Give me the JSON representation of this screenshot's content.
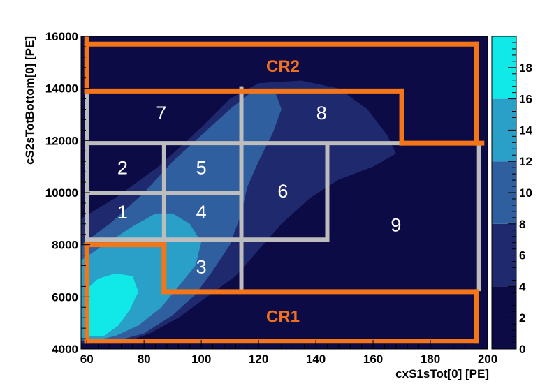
{
  "chart_data": {
    "type": "heatmap",
    "title": "",
    "xlabel": "cxS1sTot[0]  [PE]",
    "ylabel": "cS2sTotBottom[0]  [PE]",
    "xlim": [
      58,
      200
    ],
    "ylim": [
      4000,
      16000
    ],
    "x_ticks": [
      "60",
      "80",
      "100",
      "120",
      "140",
      "160",
      "180",
      "200"
    ],
    "y_ticks": [
      "4000",
      "6000",
      "8000",
      "10000",
      "12000",
      "14000",
      "16000"
    ],
    "colorbar": {
      "ticks": [
        "0",
        "2",
        "4",
        "6",
        "8",
        "10",
        "12",
        "14",
        "16",
        "18"
      ],
      "range": [
        0,
        20
      ],
      "levels": [
        {
          "from": 0,
          "to": 4,
          "color": "#0d0b45"
        },
        {
          "from": 4,
          "to": 8,
          "color": "#1f2a6e"
        },
        {
          "from": 8,
          "to": 12,
          "color": "#2f5f9e"
        },
        {
          "from": 12,
          "to": 16,
          "color": "#2aa0c8"
        },
        {
          "from": 16,
          "to": 20,
          "color": "#11e8e8"
        }
      ]
    },
    "contour_bands": [
      {
        "level": "4-8",
        "color": "#1f2a6e",
        "polygon": [
          [
            58,
            4200
          ],
          [
            58,
            9000
          ],
          [
            70,
            9800
          ],
          [
            85,
            11000
          ],
          [
            100,
            12500
          ],
          [
            110,
            13600
          ],
          [
            120,
            14200
          ],
          [
            135,
            14300
          ],
          [
            148,
            14000
          ],
          [
            158,
            13200
          ],
          [
            165,
            12200
          ],
          [
            168,
            11500
          ],
          [
            160,
            11000
          ],
          [
            148,
            10500
          ],
          [
            138,
            9800
          ],
          [
            128,
            8800
          ],
          [
            120,
            7800
          ],
          [
            112,
            6800
          ],
          [
            102,
            6000
          ],
          [
            92,
            5200
          ],
          [
            82,
            4600
          ],
          [
            72,
            4200
          ]
        ]
      },
      {
        "level": "8-12",
        "color": "#2f5f9e",
        "polygon": [
          [
            58,
            4300
          ],
          [
            58,
            8000
          ],
          [
            68,
            8800
          ],
          [
            80,
            10000
          ],
          [
            90,
            11200
          ],
          [
            100,
            12200
          ],
          [
            110,
            13200
          ],
          [
            118,
            13900
          ],
          [
            126,
            13800
          ],
          [
            128,
            13200
          ],
          [
            125,
            12300
          ],
          [
            120,
            11200
          ],
          [
            116,
            10200
          ],
          [
            114,
            9200
          ],
          [
            110,
            8000
          ],
          [
            104,
            7000
          ],
          [
            98,
            6100
          ],
          [
            90,
            5300
          ],
          [
            80,
            4600
          ],
          [
            70,
            4300
          ]
        ]
      },
      {
        "level": "12-16",
        "color": "#2aa0c8",
        "polygon": [
          [
            58,
            4400
          ],
          [
            58,
            7400
          ],
          [
            66,
            8000
          ],
          [
            76,
            8700
          ],
          [
            84,
            9200
          ],
          [
            90,
            9200
          ],
          [
            96,
            8800
          ],
          [
            100,
            8100
          ],
          [
            98,
            7200
          ],
          [
            92,
            6400
          ],
          [
            86,
            5600
          ],
          [
            78,
            4900
          ],
          [
            70,
            4500
          ],
          [
            62,
            4300
          ]
        ]
      },
      {
        "level": "16-20",
        "color": "#11e8e8",
        "polygon": [
          [
            60,
            4500
          ],
          [
            60,
            6300
          ],
          [
            64,
            6700
          ],
          [
            70,
            6900
          ],
          [
            76,
            6800
          ],
          [
            78,
            6200
          ],
          [
            75,
            5500
          ],
          [
            71,
            4900
          ],
          [
            66,
            4500
          ]
        ]
      }
    ],
    "regions": [
      {
        "label": "1",
        "x": 72.5,
        "y": 9200
      },
      {
        "label": "2",
        "x": 72.5,
        "y": 10900
      },
      {
        "label": "3",
        "x": 100,
        "y": 7100
      },
      {
        "label": "4",
        "x": 100,
        "y": 9200
      },
      {
        "label": "5",
        "x": 100,
        "y": 10900
      },
      {
        "label": "6",
        "x": 128.5,
        "y": 10000
      },
      {
        "label": "7",
        "x": 86,
        "y": 13000
      },
      {
        "label": "8",
        "x": 142,
        "y": 13000
      },
      {
        "label": "9",
        "x": 168,
        "y": 8700
      }
    ],
    "control_regions": [
      {
        "label": "CR1",
        "x": 128.5,
        "y": 5200
      },
      {
        "label": "CR2",
        "x": 128.5,
        "y": 14800
      }
    ],
    "grid_lines": {
      "color": "#bdbdbd",
      "segments": [
        [
          [
            60,
            8200
          ],
          [
            60,
            14000
          ]
        ],
        [
          [
            60,
            11900
          ],
          [
            170,
            11900
          ]
        ],
        [
          [
            170,
            11900
          ],
          [
            197,
            11900
          ]
        ],
        [
          [
            197,
            11900
          ],
          [
            197,
            6300
          ]
        ],
        [
          [
            60,
            10000
          ],
          [
            114,
            10000
          ]
        ],
        [
          [
            60,
            8200
          ],
          [
            144,
            8200
          ]
        ],
        [
          [
            87,
            8200
          ],
          [
            87,
            11800
          ]
        ],
        [
          [
            114,
            14000
          ],
          [
            114,
            6300
          ]
        ],
        [
          [
            144,
            11800
          ],
          [
            144,
            8200
          ]
        ]
      ]
    },
    "cr_boundaries": {
      "color": "#f47618",
      "segments": [
        [
          [
            60,
            15700
          ],
          [
            196,
            15700
          ]
        ],
        [
          [
            60,
            15900
          ],
          [
            60,
            13900
          ]
        ],
        [
          [
            60,
            13900
          ],
          [
            170,
            13900
          ]
        ],
        [
          [
            170,
            13900
          ],
          [
            170,
            11900
          ]
        ],
        [
          [
            170,
            11900
          ],
          [
            198,
            11900
          ]
        ],
        [
          [
            196,
            15700
          ],
          [
            196,
            11900
          ]
        ],
        [
          [
            60,
            8000
          ],
          [
            87,
            8000
          ]
        ],
        [
          [
            60,
            8000
          ],
          [
            60,
            4300
          ]
        ],
        [
          [
            60,
            4300
          ],
          [
            196,
            4300
          ]
        ],
        [
          [
            87,
            8000
          ],
          [
            87,
            6200
          ]
        ],
        [
          [
            87,
            6200
          ],
          [
            196,
            6200
          ]
        ],
        [
          [
            196,
            6200
          ],
          [
            196,
            4300
          ]
        ]
      ]
    }
  }
}
